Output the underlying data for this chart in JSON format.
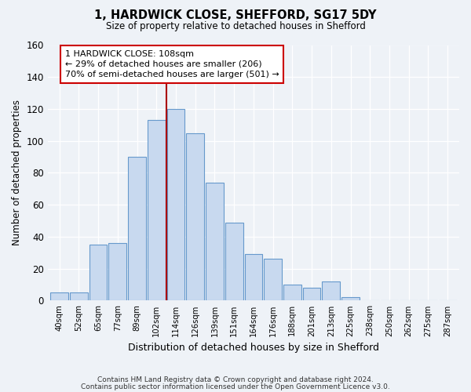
{
  "title": "1, HARDWICK CLOSE, SHEFFORD, SG17 5DY",
  "subtitle": "Size of property relative to detached houses in Shefford",
  "xlabel": "Distribution of detached houses by size in Shefford",
  "ylabel": "Number of detached properties",
  "bar_labels": [
    "40sqm",
    "52sqm",
    "65sqm",
    "77sqm",
    "89sqm",
    "102sqm",
    "114sqm",
    "126sqm",
    "139sqm",
    "151sqm",
    "164sqm",
    "176sqm",
    "188sqm",
    "201sqm",
    "213sqm",
    "225sqm",
    "238sqm",
    "250sqm",
    "262sqm",
    "275sqm",
    "287sqm"
  ],
  "bar_heights": [
    5,
    5,
    35,
    36,
    90,
    113,
    120,
    105,
    74,
    49,
    29,
    26,
    10,
    8,
    12,
    2,
    0,
    0,
    0,
    0,
    0
  ],
  "bar_color": "#c8d9ef",
  "bar_edge_color": "#6699cc",
  "marker_line_color": "#aa0000",
  "annotation_title": "1 HARDWICK CLOSE: 108sqm",
  "annotation_line1": "← 29% of detached houses are smaller (206)",
  "annotation_line2": "70% of semi-detached houses are larger (501) →",
  "annotation_box_edge": "#cc0000",
  "ylim": [
    0,
    160
  ],
  "yticks": [
    0,
    20,
    40,
    60,
    80,
    100,
    120,
    140,
    160
  ],
  "background_color": "#eef2f7",
  "grid_color": "#ffffff",
  "footer_line1": "Contains HM Land Registry data © Crown copyright and database right 2024.",
  "footer_line2": "Contains public sector information licensed under the Open Government Licence v3.0."
}
